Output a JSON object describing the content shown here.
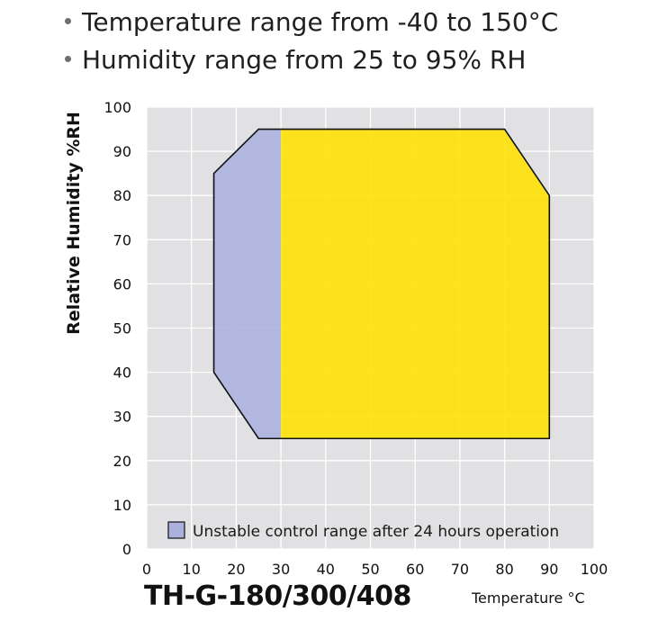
{
  "bullets": [
    "Temperature range from -40 to 150°C",
    "Humidity range from 25 to 95% RH"
  ],
  "model_title": "TH-G-180/300/408",
  "colors": {
    "plot_background": "#e1e1e3",
    "grid": "#ffffff",
    "stable_fill": "#ffe100",
    "unstable_fill": "#aab1dd",
    "outline": "#111111"
  },
  "chart_data": {
    "type": "area",
    "xlabel": "Temperature °C",
    "ylabel": "Relative Humidity %RH",
    "xlim": [
      0,
      100
    ],
    "ylim": [
      0,
      100
    ],
    "xticks": [
      0,
      10,
      20,
      30,
      40,
      50,
      60,
      70,
      80,
      90,
      100
    ],
    "yticks": [
      0,
      10,
      20,
      30,
      40,
      50,
      60,
      70,
      80,
      90,
      100
    ],
    "grid": true,
    "legend_placement": "bottom",
    "series": [
      {
        "name": "Unstable control range after 24 hours operation",
        "color": "#aab1dd",
        "points": [
          [
            30,
            95
          ],
          [
            25,
            95
          ],
          [
            15,
            85
          ],
          [
            15,
            40
          ],
          [
            25,
            25
          ],
          [
            30,
            25
          ]
        ]
      },
      {
        "color": "#ffe100",
        "points": [
          [
            30,
            25
          ],
          [
            90,
            25
          ],
          [
            90,
            80
          ],
          [
            80,
            95
          ],
          [
            30,
            95
          ]
        ]
      }
    ],
    "outline": [
      [
        25,
        95
      ],
      [
        80,
        95
      ],
      [
        90,
        80
      ],
      [
        90,
        25
      ],
      [
        25,
        25
      ],
      [
        15,
        40
      ],
      [
        15,
        85
      ]
    ]
  }
}
